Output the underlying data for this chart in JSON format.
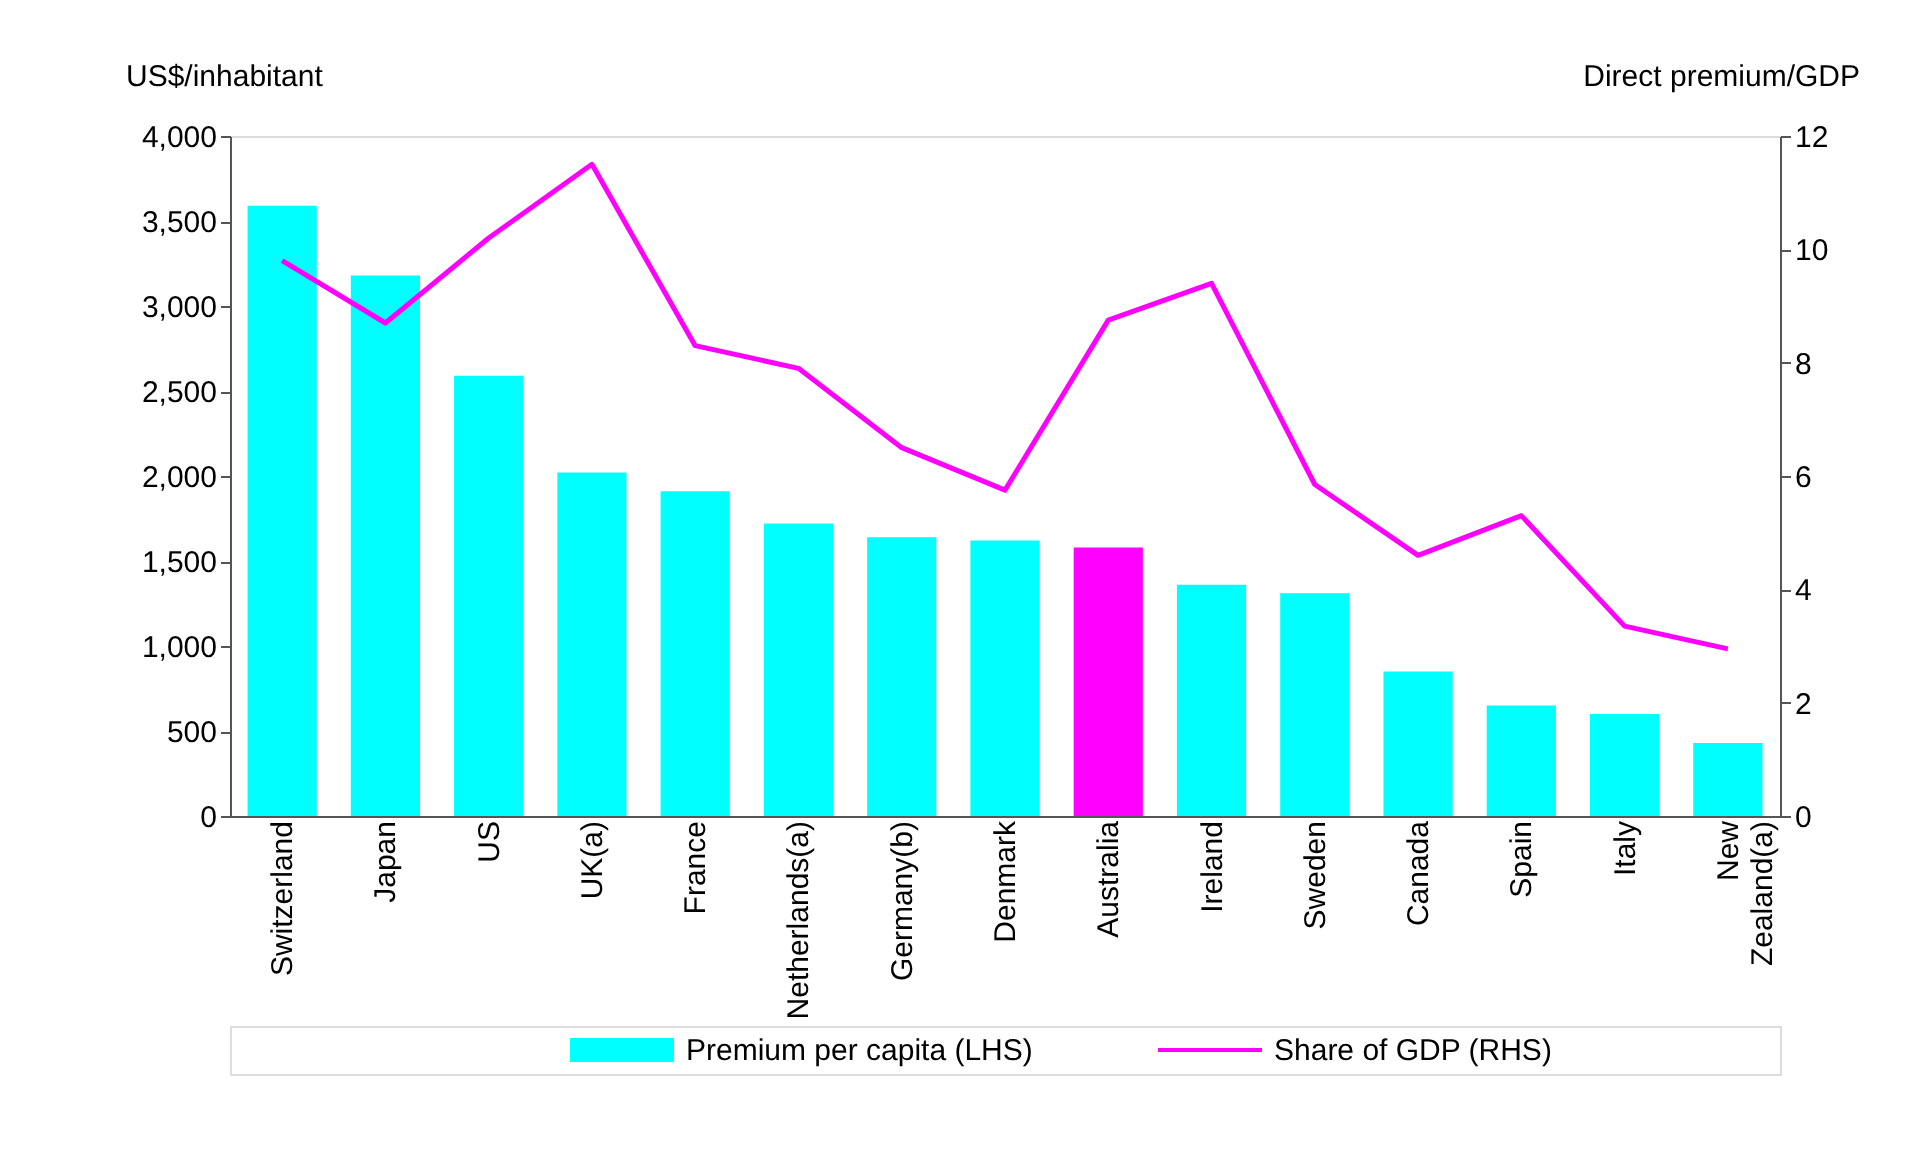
{
  "chart_data": {
    "type": "bar",
    "categories": [
      "Switzerland",
      "Japan",
      "US",
      "UK(a)",
      "France",
      "Netherlands(a)",
      "Germany(b)",
      "Denmark",
      "Australia",
      "Ireland",
      "Sweden",
      "Canada",
      "Spain",
      "Italy",
      "New Zealand(a)"
    ],
    "ylabel": "US$/inhabitant",
    "y2label": "Direct premium/GDP",
    "ylim": [
      0,
      4000
    ],
    "yticks": [
      {
        "value": 0,
        "label": "0"
      },
      {
        "value": 500,
        "label": "500"
      },
      {
        "value": 1000,
        "label": "1,000"
      },
      {
        "value": 1500,
        "label": "1,500"
      },
      {
        "value": 2000,
        "label": "2,000"
      },
      {
        "value": 2500,
        "label": "2,500"
      },
      {
        "value": 3000,
        "label": "3,000"
      },
      {
        "value": 3500,
        "label": "3,500"
      },
      {
        "value": 4000,
        "label": "4,000"
      }
    ],
    "y2lim": [
      0,
      12
    ],
    "y2ticks": [
      0,
      2,
      4,
      6,
      8,
      10,
      12
    ],
    "legend": "bottom",
    "grid": false,
    "series": [
      {
        "name": "Premium per capita (LHS)",
        "color": "#00ffff",
        "colors": [
          "#00ffff",
          "#00ffff",
          "#00ffff",
          "#00ffff",
          "#00ffff",
          "#00ffff",
          "#00ffff",
          "#00ffff",
          "#ff00ff",
          "#00ffff",
          "#00ffff",
          "#00ffff",
          "#00ffff",
          "#00ffff",
          "#00ffff"
        ],
        "values": [
          3590,
          3180,
          2590,
          2020,
          1910,
          1720,
          1640,
          1620,
          1580,
          1360,
          1310,
          850,
          650,
          600,
          430
        ]
      },
      {
        "name": "Share of GDP (RHS)",
        "type": "line",
        "axis": "y2",
        "color": "#ff00ff",
        "values": [
          9.8,
          8.7,
          10.2,
          11.5,
          8.3,
          7.9,
          6.5,
          5.75,
          8.75,
          9.4,
          5.85,
          4.6,
          5.3,
          3.35,
          2.95
        ]
      }
    ]
  }
}
